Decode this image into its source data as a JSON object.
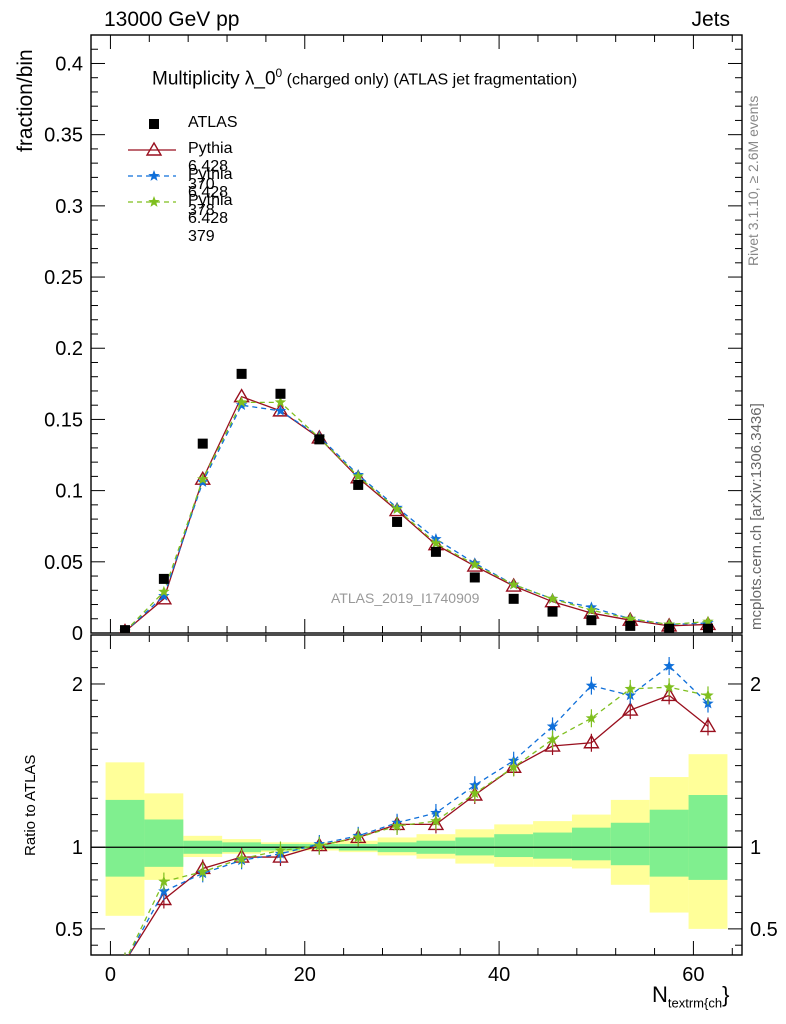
{
  "header": {
    "left": "13000 GeV pp",
    "right": "Jets"
  },
  "title": {
    "main": "Multiplicity λ_0",
    "sup": "0",
    "rest": " (charged only) (ATLAS jet fragmentation)"
  },
  "y_label_top": "fraction/bin",
  "y_label_bottom": "Ratio to ATLAS",
  "x_label": {
    "main": "N",
    "sub": "textrm{ch",
    "close": "}"
  },
  "watermark": "ATLAS_2019_I1740909",
  "side_labels": {
    "upper": "Rivet 3.1.10, ≥ 2.6M events",
    "lower": "mcplots.cern.ch [arXiv:1306.3436]"
  },
  "colors": {
    "atlas": "#000000",
    "p370": "#990f1e",
    "p378": "#0f6fd9",
    "p379": "#7fbf1f",
    "band_outer": "#ffff99",
    "band_inner": "#80ef8f"
  },
  "chart_data": [
    {
      "type": "scatter",
      "title": "Multiplicity λ_0^0 (charged only) (ATLAS jet fragmentation)",
      "xlabel": "N_textrm{ch}",
      "ylabel": "fraction/bin",
      "xlim": [
        -2,
        65
      ],
      "ylim": [
        0,
        0.42
      ],
      "yticks": [
        "0",
        "0.05",
        "0.1",
        "0.15",
        "0.2",
        "0.25",
        "0.3",
        "0.35",
        "0.4"
      ],
      "legend_position": "top-left",
      "x": [
        1.5,
        5.5,
        9.5,
        13.5,
        17.5,
        21.5,
        25.5,
        29.5,
        33.5,
        37.5,
        41.5,
        45.5,
        49.5,
        53.5,
        57.5,
        61.5
      ],
      "series": [
        {
          "name": "ATLAS",
          "marker": "square",
          "values": [
            0.002,
            0.038,
            0.133,
            0.182,
            0.168,
            0.136,
            0.104,
            0.078,
            0.057,
            0.039,
            0.024,
            0.015,
            0.009,
            0.005,
            0.003,
            0.003
          ]
        },
        {
          "name": "Pythia 6.428 370",
          "marker": "triangle-open",
          "line": "solid",
          "values": [
            0.001,
            0.024,
            0.108,
            0.166,
            0.156,
            0.137,
            0.109,
            0.086,
            0.062,
            0.047,
            0.033,
            0.022,
            0.014,
            0.009,
            0.005,
            0.006
          ]
        },
        {
          "name": "Pythia 6.428 378",
          "marker": "star",
          "line": "dashed",
          "values": [
            0.001,
            0.026,
            0.106,
            0.16,
            0.156,
            0.138,
            0.111,
            0.088,
            0.066,
            0.049,
            0.034,
            0.024,
            0.018,
            0.01,
            0.006,
            0.007
          ]
        },
        {
          "name": "Pythia 6.428 379",
          "marker": "star",
          "line": "dashed",
          "values": [
            0.001,
            0.029,
            0.108,
            0.162,
            0.162,
            0.137,
            0.11,
            0.087,
            0.063,
            0.048,
            0.034,
            0.024,
            0.016,
            0.01,
            0.006,
            0.008
          ]
        }
      ]
    },
    {
      "type": "line",
      "ylabel": "Ratio to ATLAS",
      "xlim": [
        -2,
        65
      ],
      "ylim": [
        0.34,
        2.3
      ],
      "xticks": [
        "0",
        "20",
        "40",
        "60"
      ],
      "yticks": [
        "0.5",
        "1",
        "2"
      ],
      "bands": {
        "bin_edges": [
          -0.5,
          3.5,
          7.5,
          11.5,
          15.5,
          19.5,
          23.5,
          27.5,
          31.5,
          35.5,
          39.5,
          43.5,
          47.5,
          51.5,
          55.5,
          59.5,
          63.5
        ],
        "outer": [
          [
            0.58,
            1.52
          ],
          [
            0.8,
            1.33
          ],
          [
            0.94,
            1.07
          ],
          [
            0.96,
            1.05
          ],
          [
            0.97,
            1.03
          ],
          [
            0.98,
            1.03
          ],
          [
            0.97,
            1.04
          ],
          [
            0.95,
            1.06
          ],
          [
            0.93,
            1.08
          ],
          [
            0.9,
            1.11
          ],
          [
            0.88,
            1.14
          ],
          [
            0.88,
            1.16
          ],
          [
            0.87,
            1.2
          ],
          [
            0.77,
            1.29
          ],
          [
            0.6,
            1.43
          ],
          [
            0.5,
            1.57
          ]
        ],
        "inner": [
          [
            0.82,
            1.29
          ],
          [
            0.88,
            1.17
          ],
          [
            0.96,
            1.04
          ],
          [
            0.97,
            1.03
          ],
          [
            0.98,
            1.02
          ],
          [
            0.99,
            1.02
          ],
          [
            0.98,
            1.02
          ],
          [
            0.97,
            1.03
          ],
          [
            0.96,
            1.04
          ],
          [
            0.95,
            1.06
          ],
          [
            0.94,
            1.08
          ],
          [
            0.93,
            1.09
          ],
          [
            0.92,
            1.12
          ],
          [
            0.89,
            1.15
          ],
          [
            0.82,
            1.23
          ],
          [
            0.8,
            1.32
          ]
        ]
      },
      "x": [
        1.5,
        5.5,
        9.5,
        13.5,
        17.5,
        21.5,
        25.5,
        29.5,
        33.5,
        37.5,
        41.5,
        45.5,
        49.5,
        53.5,
        57.5,
        61.5
      ],
      "series": [
        {
          "name": "Pythia 6.428 370",
          "values": [
            0.3,
            0.68,
            0.87,
            0.94,
            0.94,
            1.01,
            1.06,
            1.14,
            1.14,
            1.32,
            1.49,
            1.62,
            1.64,
            1.84,
            1.93,
            1.74
          ]
        },
        {
          "name": "Pythia 6.428 378",
          "values": [
            0.3,
            0.73,
            0.84,
            0.92,
            0.96,
            1.02,
            1.07,
            1.15,
            1.21,
            1.38,
            1.53,
            1.74,
            1.99,
            1.93,
            2.11,
            1.88
          ]
        },
        {
          "name": "Pythia 6.428 379",
          "values": [
            0.3,
            0.79,
            0.85,
            0.93,
            0.98,
            1.01,
            1.06,
            1.13,
            1.16,
            1.33,
            1.49,
            1.66,
            1.79,
            1.97,
            1.98,
            1.93
          ]
        }
      ]
    }
  ]
}
